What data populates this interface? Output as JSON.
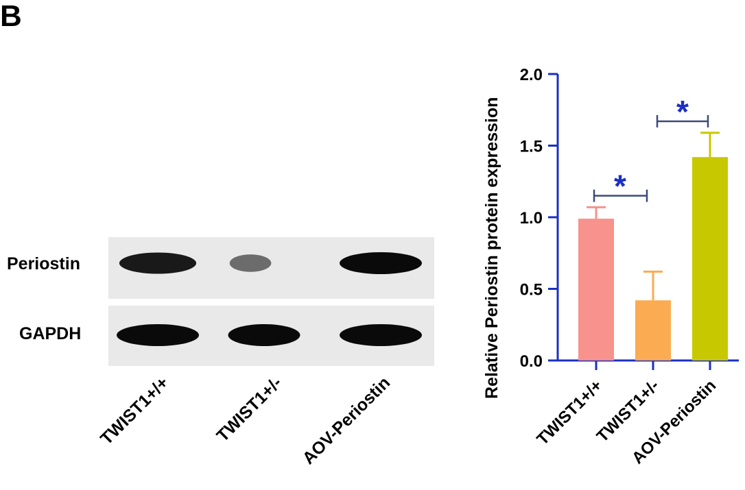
{
  "panel_label": "B",
  "western_blot": {
    "rows": [
      {
        "label": "Periostin",
        "band_intensity": [
          0.9,
          0.35,
          1.0
        ]
      },
      {
        "label": "GAPDH",
        "band_intensity": [
          1.0,
          1.0,
          1.0
        ]
      }
    ],
    "lanes": [
      "TWIST1+/+",
      "TWIST1+/-",
      "AOV-Periostin"
    ]
  },
  "colors": {
    "axis": "#1a2fc4",
    "bracket": "#3a4a7a",
    "star": "#1a2fc4",
    "bars": [
      "#f7928c",
      "#fbab52",
      "#c8c800"
    ]
  },
  "chart_data": {
    "type": "bar",
    "title": "",
    "xlabel": "",
    "ylabel": "Relative Periostin protein expression",
    "categories": [
      "TWIST1+/+",
      "TWIST1+/-",
      "AOV-Periostin"
    ],
    "values": [
      0.99,
      0.42,
      1.42
    ],
    "errors": [
      0.08,
      0.2,
      0.17
    ],
    "ylim": [
      0,
      2.0
    ],
    "yticks": [
      "0.0",
      "0.5",
      "1.0",
      "1.5",
      "2.0"
    ],
    "grid": false,
    "significance": [
      {
        "between": [
          "TWIST1+/+",
          "TWIST1+/-"
        ],
        "label": "*"
      },
      {
        "between": [
          "TWIST1+/-",
          "AOV-Periostin"
        ],
        "label": "*"
      }
    ]
  }
}
